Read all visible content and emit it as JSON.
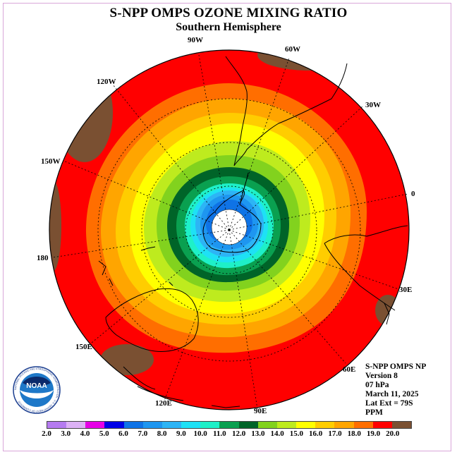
{
  "title": "S-NPP OMPS OZONE MIXING RATIO",
  "subtitle": "Southern Hemisphere",
  "longitude_labels": [
    "90W",
    "60W",
    "30W",
    "0",
    "30E",
    "60E",
    "90E",
    "120E",
    "150E",
    "180",
    "150W",
    "120W"
  ],
  "info": {
    "line1": "S-NPP OMPS NP",
    "line2": "Version 8",
    "line3": "07 hPa",
    "line4": "March 11, 2025",
    "line5": "Lat Ext = 79S",
    "line6": "PPM"
  },
  "logo_text": "NOAA",
  "logo_ring_text": "NATIONAL OCEANIC AND ATMOSPHERIC ADMINISTRATION · U.S. DEPARTMENT OF COMMERCE",
  "legend": {
    "labels": [
      "2.0",
      "3.0",
      "4.0",
      "5.0",
      "6.0",
      "7.0",
      "8.0",
      "9.0",
      "10.0",
      "11.0",
      "12.0",
      "13.0",
      "14.0",
      "15.0",
      "16.0",
      "17.0",
      "18.0",
      "19.0",
      "20.0"
    ],
    "colors": [
      "#b57bf0",
      "#dcb1f5",
      "#e600e6",
      "#0000e6",
      "#0f73e6",
      "#1e96f0",
      "#2db4f5",
      "#1ee1f5",
      "#1ef0c8",
      "#0aa050",
      "#006428",
      "#82d21e",
      "#beeb1e",
      "#ffff00",
      "#ffcd00",
      "#ffa500",
      "#ff6e00",
      "#ff0000",
      "#7a5032"
    ]
  },
  "map_colors": {
    "polar_cap": "#ffffff",
    "land_outline": "#000000",
    "graticule": "#000000"
  }
}
